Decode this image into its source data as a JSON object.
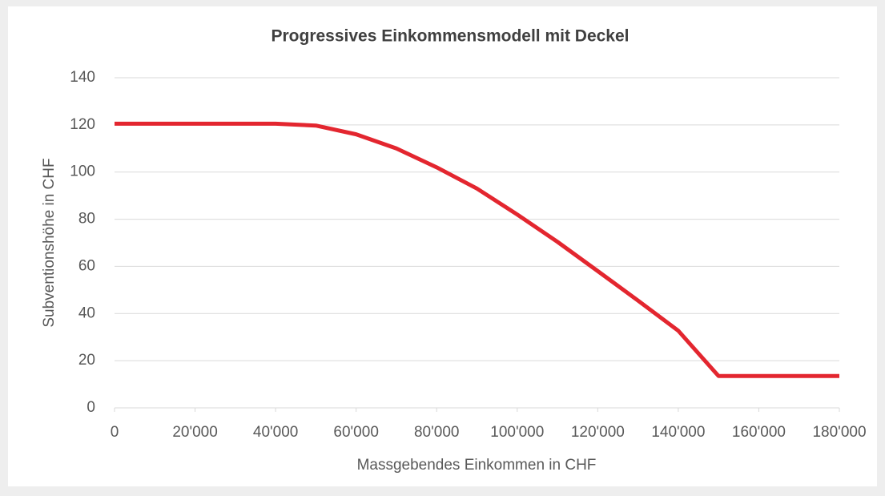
{
  "chart_data": {
    "type": "line",
    "title": "Progressives Einkommensmodell mit Deckel",
    "xlabel": "Massgebendes Einkommen in CHF",
    "ylabel": "Subventionshöhe in CHF",
    "x": [
      0,
      10000,
      20000,
      30000,
      40000,
      50000,
      60000,
      70000,
      80000,
      90000,
      100000,
      110000,
      120000,
      130000,
      140000,
      150000,
      160000,
      170000,
      180000
    ],
    "series": [
      {
        "name": "Subventionshöhe",
        "color": "#e3262f",
        "values": [
          120.5,
          120.5,
          120.5,
          120.5,
          120.5,
          119.7,
          116,
          110,
          102,
          93,
          82,
          70.4,
          58,
          45.5,
          32.7,
          13.5,
          13.5,
          13.5,
          13.5
        ]
      }
    ],
    "xlim": [
      0,
      180000
    ],
    "xticks": [
      0,
      {
        "value": 20000,
        "label": "20'000"
      },
      {
        "value": 40000,
        "label": "40'000"
      },
      {
        "value": 60000,
        "label": "60'000"
      },
      {
        "value": 80000,
        "label": "80'000"
      },
      {
        "value": 100000,
        "label": "100'000"
      },
      {
        "value": 120000,
        "label": "120'000"
      },
      {
        "value": 140000,
        "label": "140'000"
      },
      {
        "value": 160000,
        "label": "160'000"
      },
      {
        "value": 180000,
        "label": "180'000"
      }
    ],
    "ylim": [
      0,
      140
    ],
    "yticks": [
      0,
      20,
      40,
      60,
      80,
      100,
      120,
      140
    ],
    "grid": true
  }
}
